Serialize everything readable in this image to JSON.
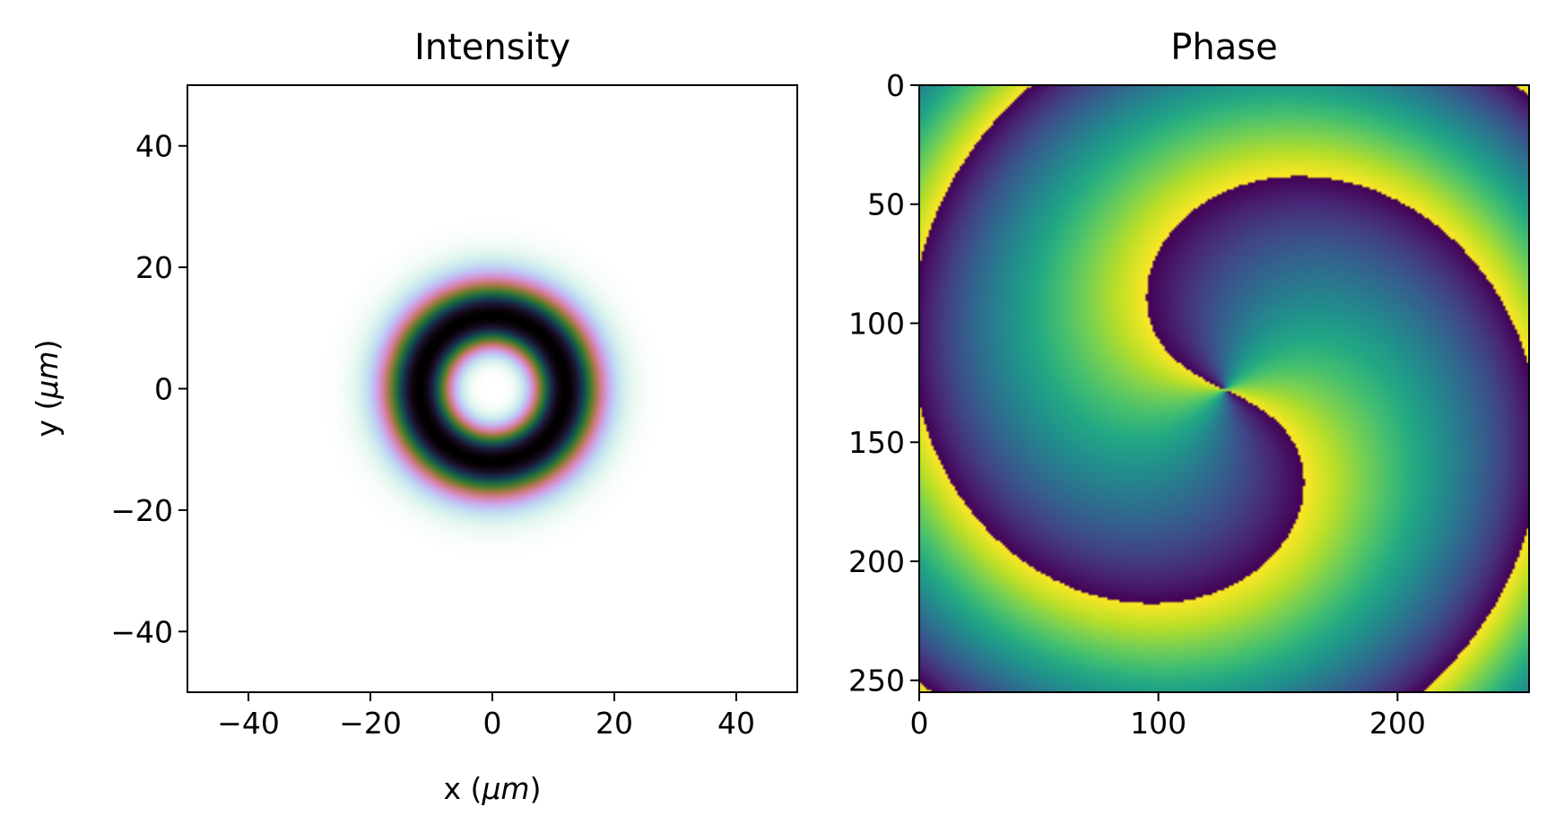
{
  "chart_data": [
    {
      "type": "heatmap",
      "title": "Intensity",
      "xlabel": {
        "prefix": "x (",
        "unit": "μm",
        "suffix": ")"
      },
      "ylabel": {
        "prefix": "y (",
        "unit": "μm",
        "suffix": ")"
      },
      "xlim": [
        -50,
        50
      ],
      "ylim": [
        -50,
        50
      ],
      "xticks": [
        -40,
        -20,
        0,
        20,
        40
      ],
      "yticks": [
        40,
        20,
        0,
        -20,
        -40
      ],
      "xtick_labels": [
        "−40",
        "−20",
        "0",
        "20",
        "40"
      ],
      "ytick_labels": [
        "40",
        "20",
        "0",
        "−20",
        "−40"
      ],
      "ring_center": [
        0,
        0
      ],
      "ring_radius_peak": 12,
      "ring_inner_radius": 8,
      "ring_outer_radius": 18,
      "colormap": "cubehelix_r",
      "grid": false
    },
    {
      "type": "heatmap",
      "title": "Phase",
      "xlim": [
        0,
        255
      ],
      "ylim": [
        255,
        0
      ],
      "xticks": [
        0,
        100,
        200
      ],
      "yticks": [
        0,
        50,
        100,
        150,
        200,
        250
      ],
      "xtick_labels": [
        "0",
        "100",
        "200"
      ],
      "ytick_labels": [
        "0",
        "50",
        "100",
        "150",
        "200",
        "250"
      ],
      "vortex_center": [
        128,
        128
      ],
      "topological_charge": 2,
      "colormap": "viridis",
      "grid": false
    }
  ]
}
